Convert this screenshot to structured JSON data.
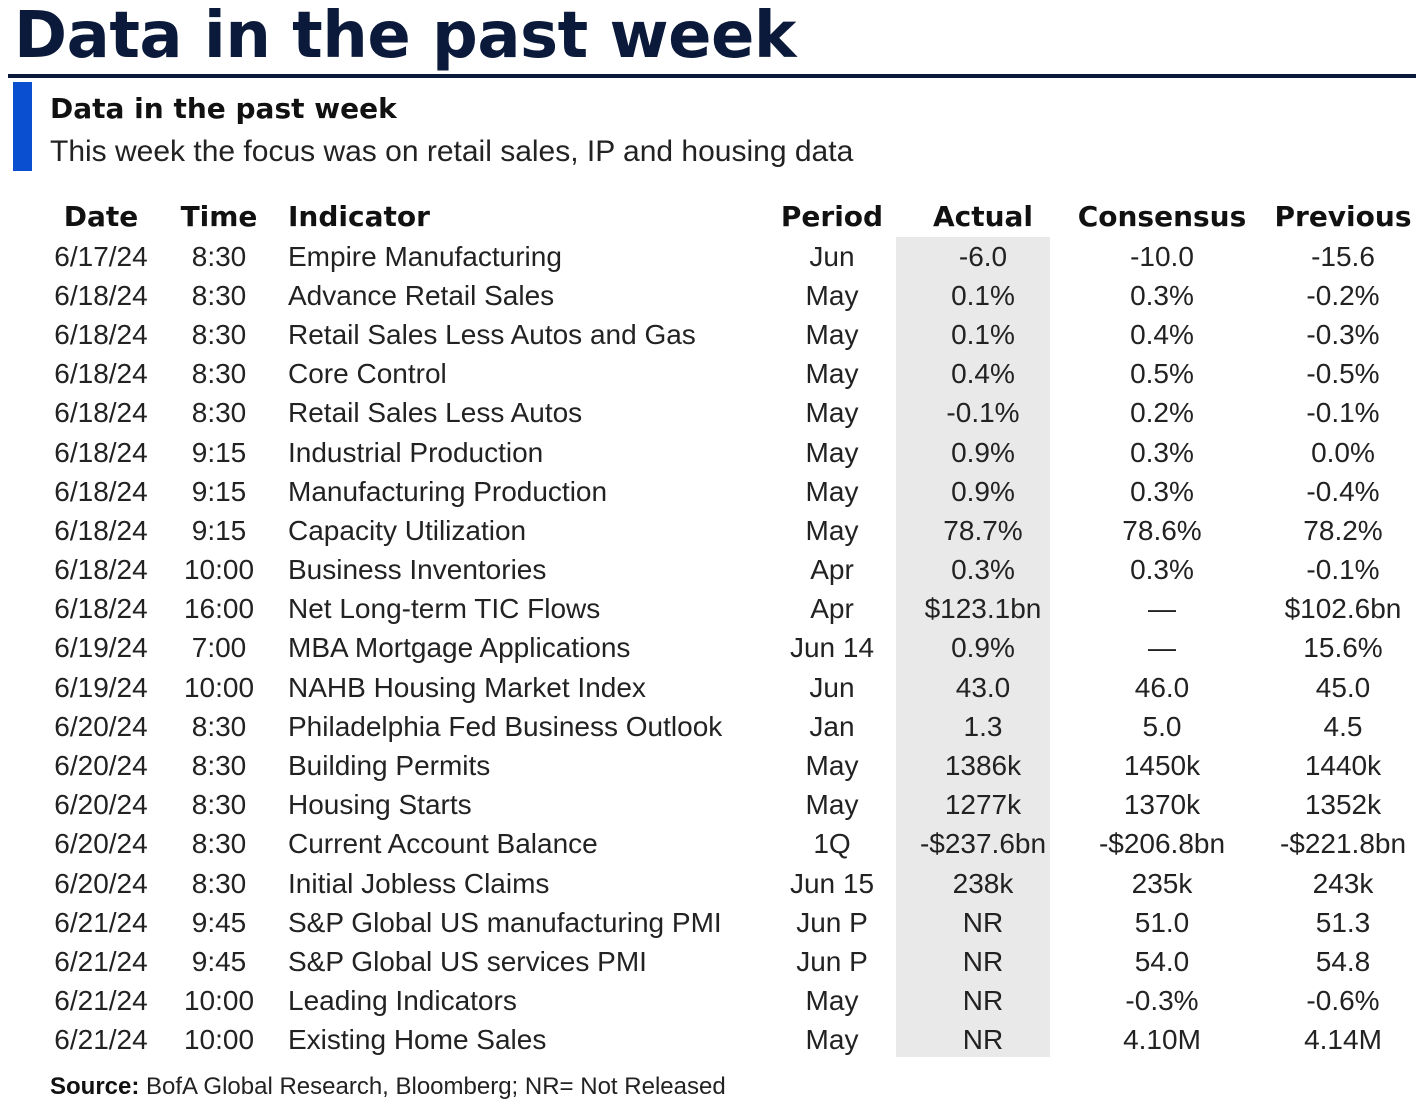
{
  "page_title": "Data in the past week",
  "panel": {
    "title": "Data in the past week",
    "subtitle": "This week the focus was on retail sales, IP and housing data"
  },
  "table": {
    "headers": [
      "Date",
      "Time",
      "Indicator",
      "Period",
      "Actual",
      "Consensus",
      "Previous"
    ],
    "rows": [
      [
        "6/17/24",
        "8:30",
        "Empire Manufacturing",
        "Jun",
        "-6.0",
        "-10.0",
        "-15.6"
      ],
      [
        "6/18/24",
        "8:30",
        "Advance Retail Sales",
        "May",
        "0.1%",
        "0.3%",
        "-0.2%"
      ],
      [
        "6/18/24",
        "8:30",
        "Retail Sales Less Autos and Gas",
        "May",
        "0.1%",
        "0.4%",
        "-0.3%"
      ],
      [
        "6/18/24",
        "8:30",
        "Core Control",
        "May",
        "0.4%",
        "0.5%",
        "-0.5%"
      ],
      [
        "6/18/24",
        "8:30",
        "Retail Sales Less Autos",
        "May",
        "-0.1%",
        "0.2%",
        "-0.1%"
      ],
      [
        "6/18/24",
        "9:15",
        "Industrial Production",
        "May",
        "0.9%",
        "0.3%",
        "0.0%"
      ],
      [
        "6/18/24",
        "9:15",
        "Manufacturing Production",
        "May",
        "0.9%",
        "0.3%",
        "-0.4%"
      ],
      [
        "6/18/24",
        "9:15",
        "Capacity Utilization",
        "May",
        "78.7%",
        "78.6%",
        "78.2%"
      ],
      [
        "6/18/24",
        "10:00",
        "Business Inventories",
        "Apr",
        "0.3%",
        "0.3%",
        "-0.1%"
      ],
      [
        "6/18/24",
        "16:00",
        "Net Long-term TIC Flows",
        "Apr",
        "$123.1bn",
        "—",
        "$102.6bn"
      ],
      [
        "6/19/24",
        "7:00",
        "MBA Mortgage Applications",
        "Jun 14",
        "0.9%",
        "—",
        "15.6%"
      ],
      [
        "6/19/24",
        "10:00",
        "NAHB Housing Market Index",
        "Jun",
        "43.0",
        "46.0",
        "45.0"
      ],
      [
        "6/20/24",
        "8:30",
        "Philadelphia Fed Business Outlook",
        "Jan",
        "1.3",
        "5.0",
        "4.5"
      ],
      [
        "6/20/24",
        "8:30",
        "Building Permits",
        "May",
        "1386k",
        "1450k",
        "1440k"
      ],
      [
        "6/20/24",
        "8:30",
        "Housing Starts",
        "May",
        "1277k",
        "1370k",
        "1352k"
      ],
      [
        "6/20/24",
        "8:30",
        "Current Account Balance",
        "1Q",
        "-$237.6bn",
        "-$206.8bn",
        "-$221.8bn"
      ],
      [
        "6/20/24",
        "8:30",
        "Initial Jobless Claims",
        "Jun 15",
        "238k",
        "235k",
        "243k"
      ],
      [
        "6/21/24",
        "9:45",
        "S&P Global US manufacturing PMI",
        "Jun P",
        "NR",
        "51.0",
        "51.3"
      ],
      [
        "6/21/24",
        "9:45",
        "S&P Global US services PMI",
        "Jun P",
        "NR",
        "54.0",
        "54.8"
      ],
      [
        "6/21/24",
        "10:00",
        "Leading Indicators",
        "May",
        "NR",
        "-0.3%",
        "-0.6%"
      ],
      [
        "6/21/24",
        "10:00",
        "Existing Home Sales",
        "May",
        "NR",
        "4.10M",
        "4.14M"
      ]
    ]
  },
  "source": {
    "label": "Source:",
    "text": " BofA Global Research, Bloomberg; NR= Not Released"
  },
  "colors": {
    "title": "#0b1a3a",
    "accent": "#0a4fd0",
    "actual_column_shade": "#e9e9e9"
  }
}
